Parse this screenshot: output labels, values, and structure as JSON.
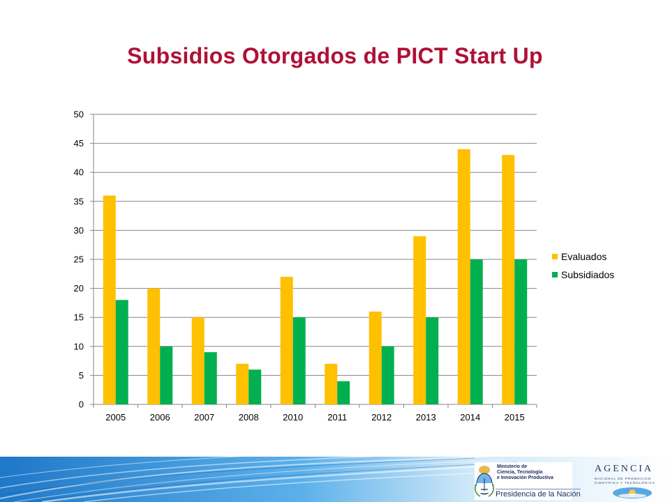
{
  "slide": {
    "title": "Subsidios Otorgados de PICT Start Up"
  },
  "chart_data": {
    "type": "bar",
    "title": "",
    "xlabel": "",
    "ylabel": "",
    "categories": [
      "2005",
      "2006",
      "2007",
      "2008",
      "2010",
      "2011",
      "2012",
      "2013",
      "2014",
      "2015"
    ],
    "series": [
      {
        "name": "Evaluados",
        "color": "#ffc000",
        "values": [
          36,
          20,
          15,
          7,
          22,
          7,
          16,
          29,
          44,
          43
        ]
      },
      {
        "name": "Subsidiados",
        "color": "#00b050",
        "values": [
          18,
          10,
          9,
          6,
          15,
          4,
          10,
          15,
          25,
          25
        ]
      }
    ],
    "ylim": [
      0,
      50
    ],
    "yticks": [
      0,
      5,
      10,
      15,
      20,
      25,
      30,
      35,
      40,
      45,
      50
    ],
    "grid": true,
    "legend_position": "right"
  },
  "footer": {
    "ministry_lines": "Ministerio de\nCiencia, Tecnología\ne Innovación Productiva",
    "presidencia": "Presidencia de la Nación",
    "agencia_title": "AGENCIA",
    "agencia_sub": "NACIONAL DE PROMOCIÓN\nCIENTÍFICA Y TECNOLÓGICA"
  }
}
